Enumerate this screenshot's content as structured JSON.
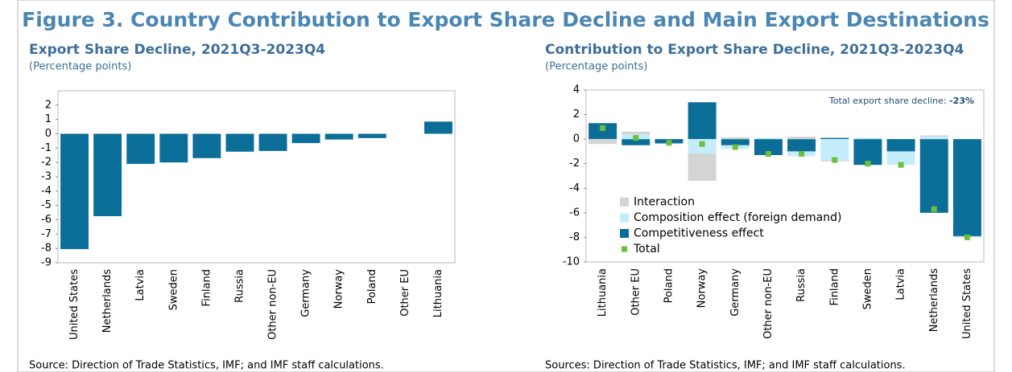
{
  "title": "Figure 3. Country Contribution to Export Share Decline and Main Export Destinations",
  "chart_data": [
    {
      "type": "bar",
      "title": "Export Share Decline, 2021Q3-2023Q4",
      "subtitle": "(Percentage points)",
      "source": "Source: Direction of Trade Statistics, IMF; and IMF staff calculations.",
      "categories": [
        "United States",
        "Netherlands",
        "Latvia",
        "Sweden",
        "Finland",
        "Russia",
        "Other non-EU",
        "Germany",
        "Norway",
        "Poland",
        "Other EU",
        "Lithuania"
      ],
      "values": [
        -8.05,
        -5.75,
        -2.1,
        -2.0,
        -1.7,
        -1.25,
        -1.2,
        -0.65,
        -0.4,
        -0.3,
        0,
        0.85
      ],
      "color": "#0b6e99",
      "ylim": [
        -9,
        3
      ],
      "yticks": [
        -9,
        -8,
        -7,
        -6,
        -5,
        -4,
        -3,
        -2,
        -1,
        0,
        1,
        2
      ],
      "grid": false
    },
    {
      "type": "stacked_bar",
      "title": "Contribution to Export Share Decline, 2021Q3-2023Q4",
      "subtitle": "(Percentage points)",
      "source": "Sources: Direction of Trade Statistics, IMF; and IMF staff calculations.",
      "annotation": {
        "text": "Total export share decline:",
        "value": "-23%"
      },
      "categories": [
        "Lithuania",
        "Other EU",
        "Poland",
        "Norway",
        "Germany",
        "Other non-EU",
        "Russia",
        "Finland",
        "Sweden",
        "Latvia",
        "Netherlands",
        "United States"
      ],
      "series": [
        {
          "name": "Interaction",
          "color": "#d4d4d4",
          "values": [
            -0.4,
            0.2,
            0,
            -2.2,
            0.15,
            0,
            0.2,
            -0.1,
            0,
            0,
            0.1,
            -0.1
          ]
        },
        {
          "name": "Composition effect (foreign demand)",
          "color": "#c5ecfb",
          "values": [
            0,
            0.4,
            0,
            -1.2,
            -0.3,
            0.1,
            -0.4,
            -1.7,
            0.1,
            -1.1,
            0.2,
            0
          ]
        },
        {
          "name": "Competitiveness effect",
          "color": "#0b6e99",
          "values": [
            1.3,
            -0.5,
            -0.35,
            3.0,
            -0.5,
            -1.3,
            -1.0,
            0.1,
            -2.1,
            -1.0,
            -6.0,
            -7.9
          ]
        }
      ],
      "markers": {
        "name": "Total",
        "color": "#6cbf3e",
        "values": [
          0.9,
          0.1,
          -0.3,
          -0.4,
          -0.65,
          -1.2,
          -1.2,
          -1.7,
          -2.0,
          -2.1,
          -5.7,
          -8.0
        ]
      },
      "ylim": [
        -10,
        4
      ],
      "yticks": [
        -10,
        -8,
        -6,
        -4,
        -2,
        0,
        2,
        4
      ],
      "legend": "lower left",
      "grid": false
    }
  ]
}
